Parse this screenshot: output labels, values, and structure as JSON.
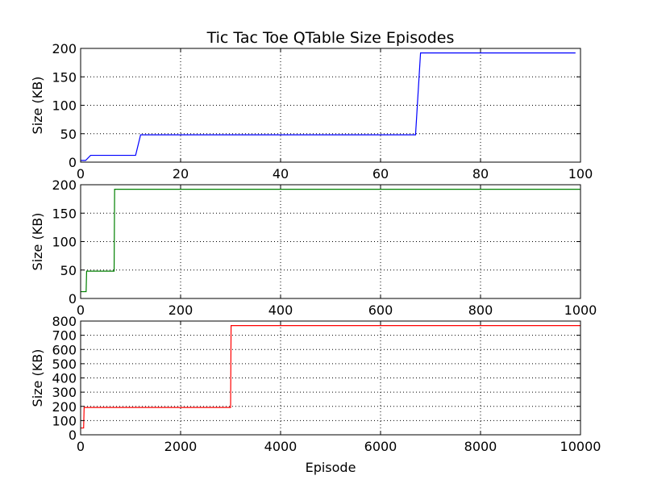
{
  "figure": {
    "title": "Tic Tac Toe QTable Size Episodes"
  },
  "chart_data": [
    {
      "type": "line",
      "title": "Tic Tac Toe QTable Size Episodes",
      "xlabel": "",
      "ylabel": "Size (KB)",
      "xlim": [
        0,
        100
      ],
      "ylim": [
        0,
        200
      ],
      "xticks": [
        0,
        20,
        40,
        60,
        80,
        100
      ],
      "yticks": [
        0,
        50,
        100,
        150,
        200
      ],
      "grid": true,
      "series": [
        {
          "color": "#0000ff",
          "x": [
            0,
            1,
            2,
            11,
            12,
            67,
            68,
            99
          ],
          "y": [
            3,
            3,
            12,
            12,
            48,
            48,
            192,
            192
          ]
        }
      ]
    },
    {
      "type": "line",
      "title": "",
      "xlabel": "",
      "ylabel": "Size (KB)",
      "xlim": [
        0,
        1000
      ],
      "ylim": [
        0,
        200
      ],
      "xticks": [
        0,
        200,
        400,
        600,
        800,
        1000
      ],
      "yticks": [
        0,
        50,
        100,
        150,
        200
      ],
      "grid": true,
      "series": [
        {
          "color": "#008000",
          "x": [
            0,
            11,
            12,
            67,
            68,
            999
          ],
          "y": [
            12,
            12,
            48,
            48,
            192,
            192
          ]
        }
      ]
    },
    {
      "type": "line",
      "title": "",
      "xlabel": "Episode",
      "ylabel": "Size (KB)",
      "xlim": [
        0,
        10000
      ],
      "ylim": [
        0,
        800
      ],
      "xticks": [
        0,
        2000,
        4000,
        6000,
        8000,
        10000
      ],
      "yticks": [
        0,
        100,
        200,
        300,
        400,
        500,
        600,
        700,
        800
      ],
      "grid": true,
      "series": [
        {
          "color": "#ff0000",
          "x": [
            0,
            60,
            70,
            3000,
            3010,
            9999
          ],
          "y": [
            48,
            48,
            192,
            192,
            768,
            768
          ]
        }
      ]
    }
  ]
}
